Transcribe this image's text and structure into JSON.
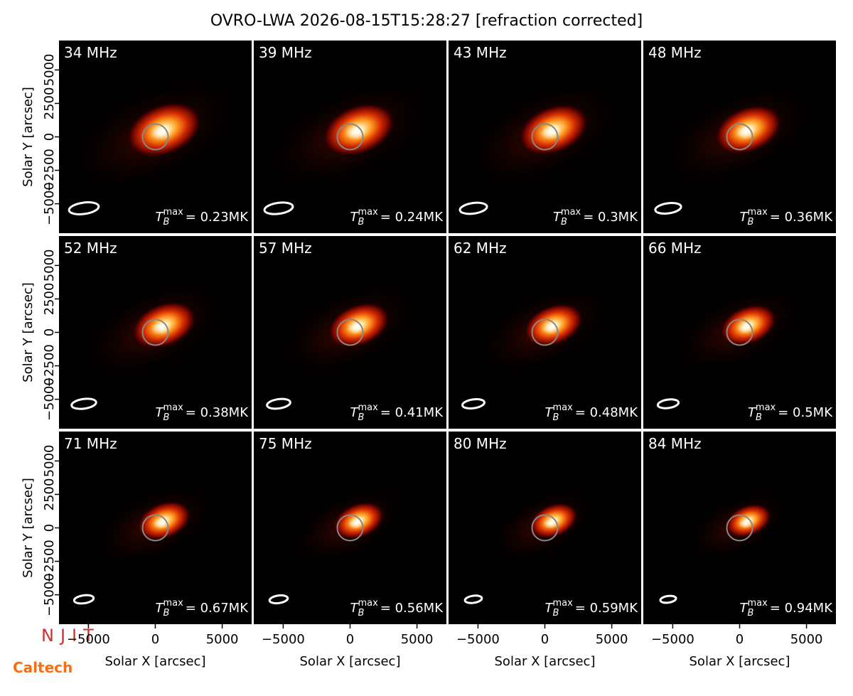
{
  "chart_data": {
    "type": "image-grid",
    "title": "OVRO-LWA 2026-08-15T15:28:27 [refraction corrected]",
    "xlabel": "Solar X [arcsec]",
    "ylabel": "Solar Y [arcsec]",
    "xlim": [
      -7200,
      7200
    ],
    "ylim": [
      -7200,
      7200
    ],
    "xticks": [
      {
        "value": -5000,
        "label": "−5000"
      },
      0,
      5000
    ],
    "yticks": [
      {
        "value": -5000,
        "label": "−5000"
      },
      {
        "value": -2500,
        "label": "−2500"
      },
      0,
      2500,
      5000
    ],
    "tb_symbol": "T",
    "tb_sub": "B",
    "tb_sup": "max",
    "panels": [
      "34 MHz",
      "39 MHz",
      "43 MHz",
      "48 MHz",
      "52 MHz",
      "57 MHz",
      "62 MHz",
      "66 MHz",
      "71 MHz",
      "75 MHz",
      "80 MHz",
      "84 MHz"
    ],
    "tb_max": [
      0.23,
      0.24,
      0.3,
      0.36,
      0.38,
      0.41,
      0.48,
      0.5,
      0.67,
      0.56,
      0.59,
      0.94
    ],
    "tb_max_labels": [
      "= 0.23MK",
      "= 0.24MK",
      "= 0.3MK",
      "= 0.36MK",
      "= 0.38MK",
      "= 0.41MK",
      "= 0.48MK",
      "= 0.5MK",
      "= 0.67MK",
      "= 0.56MK",
      "= 0.59MK",
      "= 0.94MK"
    ],
    "logos": [
      "NJIT",
      "Caltech"
    ]
  }
}
